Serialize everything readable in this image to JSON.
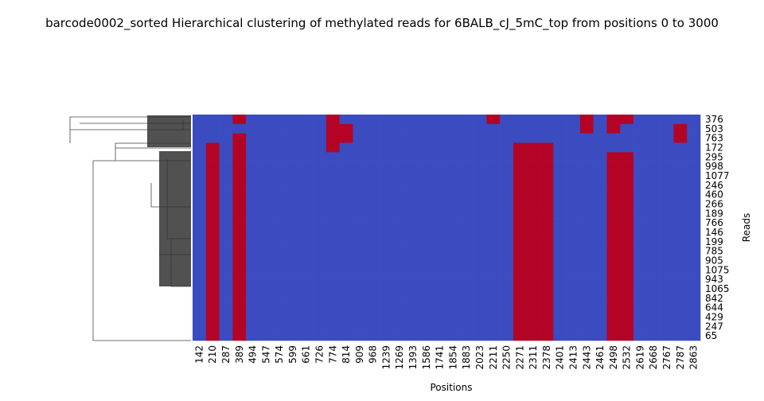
{
  "chart_data": {
    "type": "heatmap",
    "title": "barcode0002_sorted Hierarchical clustering of methylated reads for 6BALB_cJ_5mC_top from positions 0 to 3000",
    "xlabel": "Positions",
    "ylabel": "Reads",
    "x": [
      "142",
      "210",
      "287",
      "389",
      "494",
      "547",
      "574",
      "599",
      "661",
      "726",
      "774",
      "814",
      "909",
      "968",
      "1239",
      "1269",
      "1393",
      "1586",
      "1741",
      "1854",
      "1883",
      "2023",
      "2211",
      "2250",
      "2271",
      "2311",
      "2378",
      "2401",
      "2413",
      "2443",
      "2461",
      "2498",
      "2532",
      "2619",
      "2668",
      "2767",
      "2787",
      "2863"
    ],
    "y": [
      "376",
      "503",
      "763",
      "172",
      "295",
      "998",
      "1077",
      "246",
      "460",
      "266",
      "189",
      "766",
      "146",
      "199",
      "785",
      "905",
      "1075",
      "943",
      "1065",
      "842",
      "644",
      "429",
      "247",
      "65"
    ],
    "colors": [
      "#3b4cc0",
      "#b40426"
    ],
    "values": [
      [
        0,
        0,
        0,
        1,
        0,
        0,
        0,
        0,
        0,
        0,
        1,
        0,
        0,
        0,
        0,
        0,
        0,
        0,
        0,
        0,
        0,
        0,
        1,
        0,
        0,
        0,
        0,
        0,
        0,
        1,
        0,
        1,
        1,
        0,
        0,
        0,
        0,
        0
      ],
      [
        0,
        0,
        0,
        0,
        0,
        0,
        0,
        0,
        0,
        0,
        1,
        1,
        0,
        0,
        0,
        0,
        0,
        0,
        0,
        0,
        0,
        0,
        0,
        0,
        0,
        0,
        0,
        0,
        0,
        1,
        0,
        1,
        0,
        0,
        0,
        0,
        1,
        0
      ],
      [
        0,
        0,
        0,
        1,
        0,
        0,
        0,
        0,
        0,
        0,
        1,
        1,
        0,
        0,
        0,
        0,
        0,
        0,
        0,
        0,
        0,
        0,
        0,
        0,
        0,
        0,
        0,
        0,
        0,
        0,
        0,
        0,
        0,
        0,
        0,
        0,
        1,
        0
      ],
      [
        0,
        1,
        0,
        1,
        0,
        0,
        0,
        0,
        0,
        0,
        1,
        0,
        0,
        0,
        0,
        0,
        0,
        0,
        0,
        0,
        0,
        0,
        0,
        0,
        1,
        1,
        1,
        0,
        0,
        0,
        0,
        0,
        0,
        0,
        0,
        0,
        0,
        0
      ],
      [
        0,
        1,
        0,
        1,
        0,
        0,
        0,
        0,
        0,
        0,
        0,
        0,
        0,
        0,
        0,
        0,
        0,
        0,
        0,
        0,
        0,
        0,
        0,
        0,
        1,
        1,
        1,
        0,
        0,
        0,
        0,
        1,
        1,
        0,
        0,
        0,
        0,
        0
      ],
      [
        0,
        1,
        0,
        1,
        0,
        0,
        0,
        0,
        0,
        0,
        0,
        0,
        0,
        0,
        0,
        0,
        0,
        0,
        0,
        0,
        0,
        0,
        0,
        0,
        1,
        1,
        1,
        0,
        0,
        0,
        0,
        1,
        1,
        0,
        0,
        0,
        0,
        0
      ],
      [
        0,
        1,
        0,
        1,
        0,
        0,
        0,
        0,
        0,
        0,
        0,
        0,
        0,
        0,
        0,
        0,
        0,
        0,
        0,
        0,
        0,
        0,
        0,
        0,
        1,
        1,
        1,
        0,
        0,
        0,
        0,
        1,
        1,
        0,
        0,
        0,
        0,
        0
      ],
      [
        0,
        1,
        0,
        1,
        0,
        0,
        0,
        0,
        0,
        0,
        0,
        0,
        0,
        0,
        0,
        0,
        0,
        0,
        0,
        0,
        0,
        0,
        0,
        0,
        1,
        1,
        1,
        0,
        0,
        0,
        0,
        1,
        1,
        0,
        0,
        0,
        0,
        0
      ],
      [
        0,
        1,
        0,
        1,
        0,
        0,
        0,
        0,
        0,
        0,
        0,
        0,
        0,
        0,
        0,
        0,
        0,
        0,
        0,
        0,
        0,
        0,
        0,
        0,
        1,
        1,
        1,
        0,
        0,
        0,
        0,
        1,
        1,
        0,
        0,
        0,
        0,
        0
      ],
      [
        0,
        1,
        0,
        1,
        0,
        0,
        0,
        0,
        0,
        0,
        0,
        0,
        0,
        0,
        0,
        0,
        0,
        0,
        0,
        0,
        0,
        0,
        0,
        0,
        1,
        1,
        1,
        0,
        0,
        0,
        0,
        1,
        1,
        0,
        0,
        0,
        0,
        0
      ],
      [
        0,
        1,
        0,
        1,
        0,
        0,
        0,
        0,
        0,
        0,
        0,
        0,
        0,
        0,
        0,
        0,
        0,
        0,
        0,
        0,
        0,
        0,
        0,
        0,
        1,
        1,
        1,
        0,
        0,
        0,
        0,
        1,
        1,
        0,
        0,
        0,
        0,
        0
      ],
      [
        0,
        1,
        0,
        1,
        0,
        0,
        0,
        0,
        0,
        0,
        0,
        0,
        0,
        0,
        0,
        0,
        0,
        0,
        0,
        0,
        0,
        0,
        0,
        0,
        1,
        1,
        1,
        0,
        0,
        0,
        0,
        1,
        1,
        0,
        0,
        0,
        0,
        0
      ],
      [
        0,
        1,
        0,
        1,
        0,
        0,
        0,
        0,
        0,
        0,
        0,
        0,
        0,
        0,
        0,
        0,
        0,
        0,
        0,
        0,
        0,
        0,
        0,
        0,
        1,
        1,
        1,
        0,
        0,
        0,
        0,
        1,
        1,
        0,
        0,
        0,
        0,
        0
      ],
      [
        0,
        1,
        0,
        1,
        0,
        0,
        0,
        0,
        0,
        0,
        0,
        0,
        0,
        0,
        0,
        0,
        0,
        0,
        0,
        0,
        0,
        0,
        0,
        0,
        1,
        1,
        1,
        0,
        0,
        0,
        0,
        1,
        1,
        0,
        0,
        0,
        0,
        0
      ],
      [
        0,
        1,
        0,
        1,
        0,
        0,
        0,
        0,
        0,
        0,
        0,
        0,
        0,
        0,
        0,
        0,
        0,
        0,
        0,
        0,
        0,
        0,
        0,
        0,
        1,
        1,
        1,
        0,
        0,
        0,
        0,
        1,
        1,
        0,
        0,
        0,
        0,
        0
      ],
      [
        0,
        1,
        0,
        1,
        0,
        0,
        0,
        0,
        0,
        0,
        0,
        0,
        0,
        0,
        0,
        0,
        0,
        0,
        0,
        0,
        0,
        0,
        0,
        0,
        1,
        1,
        1,
        0,
        0,
        0,
        0,
        1,
        1,
        0,
        0,
        0,
        0,
        0
      ],
      [
        0,
        1,
        0,
        1,
        0,
        0,
        0,
        0,
        0,
        0,
        0,
        0,
        0,
        0,
        0,
        0,
        0,
        0,
        0,
        0,
        0,
        0,
        0,
        0,
        1,
        1,
        1,
        0,
        0,
        0,
        0,
        1,
        1,
        0,
        0,
        0,
        0,
        0
      ],
      [
        0,
        1,
        0,
        1,
        0,
        0,
        0,
        0,
        0,
        0,
        0,
        0,
        0,
        0,
        0,
        0,
        0,
        0,
        0,
        0,
        0,
        0,
        0,
        0,
        1,
        1,
        1,
        0,
        0,
        0,
        0,
        1,
        1,
        0,
        0,
        0,
        0,
        0
      ],
      [
        0,
        1,
        0,
        1,
        0,
        0,
        0,
        0,
        0,
        0,
        0,
        0,
        0,
        0,
        0,
        0,
        0,
        0,
        0,
        0,
        0,
        0,
        0,
        0,
        1,
        1,
        1,
        0,
        0,
        0,
        0,
        1,
        1,
        0,
        0,
        0,
        0,
        0
      ],
      [
        0,
        1,
        0,
        1,
        0,
        0,
        0,
        0,
        0,
        0,
        0,
        0,
        0,
        0,
        0,
        0,
        0,
        0,
        0,
        0,
        0,
        0,
        0,
        0,
        1,
        1,
        1,
        0,
        0,
        0,
        0,
        1,
        1,
        0,
        0,
        0,
        0,
        0
      ],
      [
        0,
        1,
        0,
        1,
        0,
        0,
        0,
        0,
        0,
        0,
        0,
        0,
        0,
        0,
        0,
        0,
        0,
        0,
        0,
        0,
        0,
        0,
        0,
        0,
        1,
        1,
        1,
        0,
        0,
        0,
        0,
        1,
        1,
        0,
        0,
        0,
        0,
        0
      ],
      [
        0,
        1,
        0,
        1,
        0,
        0,
        0,
        0,
        0,
        0,
        0,
        0,
        0,
        0,
        0,
        0,
        0,
        0,
        0,
        0,
        0,
        0,
        0,
        0,
        1,
        1,
        1,
        0,
        0,
        0,
        0,
        1,
        1,
        0,
        0,
        0,
        0,
        0
      ],
      [
        0,
        1,
        0,
        1,
        0,
        0,
        0,
        0,
        0,
        0,
        0,
        0,
        0,
        0,
        0,
        0,
        0,
        0,
        0,
        0,
        0,
        0,
        0,
        0,
        1,
        1,
        1,
        0,
        0,
        0,
        0,
        1,
        1,
        0,
        0,
        0,
        0,
        0
      ],
      [
        0,
        1,
        0,
        1,
        0,
        0,
        0,
        0,
        0,
        0,
        0,
        0,
        0,
        0,
        0,
        0,
        0,
        0,
        0,
        0,
        0,
        0,
        0,
        0,
        1,
        1,
        1,
        0,
        0,
        0,
        0,
        1,
        1,
        0,
        0,
        0,
        0,
        0
      ]
    ]
  }
}
